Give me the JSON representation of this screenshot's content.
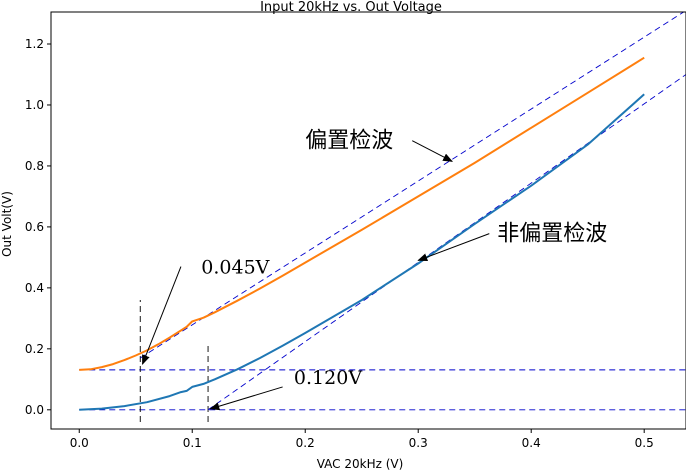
{
  "chart_data": {
    "type": "line",
    "title": "Input 20kHz vs. Out Voltage",
    "xlabel": "VAC 20kHz (V)",
    "ylabel": "Out Volt(V)",
    "xlim": [
      -0.025,
      0.537
    ],
    "ylim": [
      -0.063,
      1.305
    ],
    "x_ticks": [
      0.0,
      0.1,
      0.2,
      0.3,
      0.4,
      0.5
    ],
    "x_tick_labels": [
      "0.0",
      "0.1",
      "0.2",
      "0.3",
      "0.4",
      "0.5"
    ],
    "y_ticks": [
      0.0,
      0.2,
      0.4,
      0.6,
      0.8,
      1.0,
      1.2
    ],
    "y_tick_labels": [
      "0.0",
      "0.2",
      "0.4",
      "0.6",
      "0.8",
      "1.0",
      "1.2"
    ],
    "grid": false,
    "series": [
      {
        "name": "偏置检波",
        "color": "#ff7f0e",
        "x": [
          0.0,
          0.01,
          0.02,
          0.03,
          0.04,
          0.05,
          0.06,
          0.07,
          0.08,
          0.09,
          0.095,
          0.1,
          0.11,
          0.12,
          0.14,
          0.16,
          0.18,
          0.2,
          0.25,
          0.3,
          0.35,
          0.4,
          0.45,
          0.5
        ],
        "y": [
          0.131,
          0.133,
          0.14,
          0.15,
          0.163,
          0.178,
          0.195,
          0.215,
          0.237,
          0.26,
          0.272,
          0.29,
          0.302,
          0.32,
          0.358,
          0.398,
          0.44,
          0.483,
          0.59,
          0.7,
          0.81,
          0.925,
          1.04,
          1.155
        ],
        "label_x": 0.2,
        "label_y": 0.86
      },
      {
        "name": "非偏置检波",
        "color": "#1f77b4",
        "x": [
          0.0,
          0.02,
          0.04,
          0.06,
          0.08,
          0.09,
          0.095,
          0.1,
          0.11,
          0.12,
          0.14,
          0.16,
          0.18,
          0.2,
          0.25,
          0.3,
          0.35,
          0.4,
          0.45,
          0.5
        ],
        "y": [
          0.0,
          0.004,
          0.012,
          0.025,
          0.045,
          0.058,
          0.062,
          0.075,
          0.085,
          0.1,
          0.133,
          0.17,
          0.21,
          0.252,
          0.36,
          0.48,
          0.61,
          0.735,
          0.87,
          1.035
        ],
        "label_x": 0.37,
        "label_y": 0.555
      }
    ],
    "guides": [
      {
        "type": "hline",
        "y": 0.131,
        "x_from": 0.0,
        "x_to": 0.537,
        "color": "#0000cc"
      },
      {
        "type": "hline",
        "y": 0.0,
        "x_from": 0.0,
        "x_to": 0.537,
        "color": "#0000cc"
      },
      {
        "type": "vline",
        "x": 0.054,
        "y_from": -0.04,
        "y_to": 0.36,
        "color": "#000000"
      },
      {
        "type": "vline",
        "x": 0.114,
        "y_from": -0.04,
        "y_to": 0.22,
        "color": "#000000"
      },
      {
        "type": "line",
        "x1": 0.054,
        "y1": 0.17,
        "x2": 0.537,
        "y2": 1.31,
        "color": "#0000cc"
      },
      {
        "type": "line",
        "x1": 0.114,
        "y1": 0.0,
        "x2": 0.537,
        "y2": 1.1,
        "color": "#0000cc"
      }
    ],
    "annotations": [
      {
        "text": "0.045V",
        "x": 0.108,
        "y": 0.447,
        "arrow_from_x": 0.09,
        "arrow_from_y": 0.47,
        "arrow_to_x": 0.056,
        "arrow_to_y": 0.15
      },
      {
        "text": "0.120V",
        "x": 0.19,
        "y": 0.085,
        "arrow_from_x": 0.18,
        "arrow_from_y": 0.075,
        "arrow_to_x": 0.116,
        "arrow_to_y": 0.003
      }
    ]
  }
}
